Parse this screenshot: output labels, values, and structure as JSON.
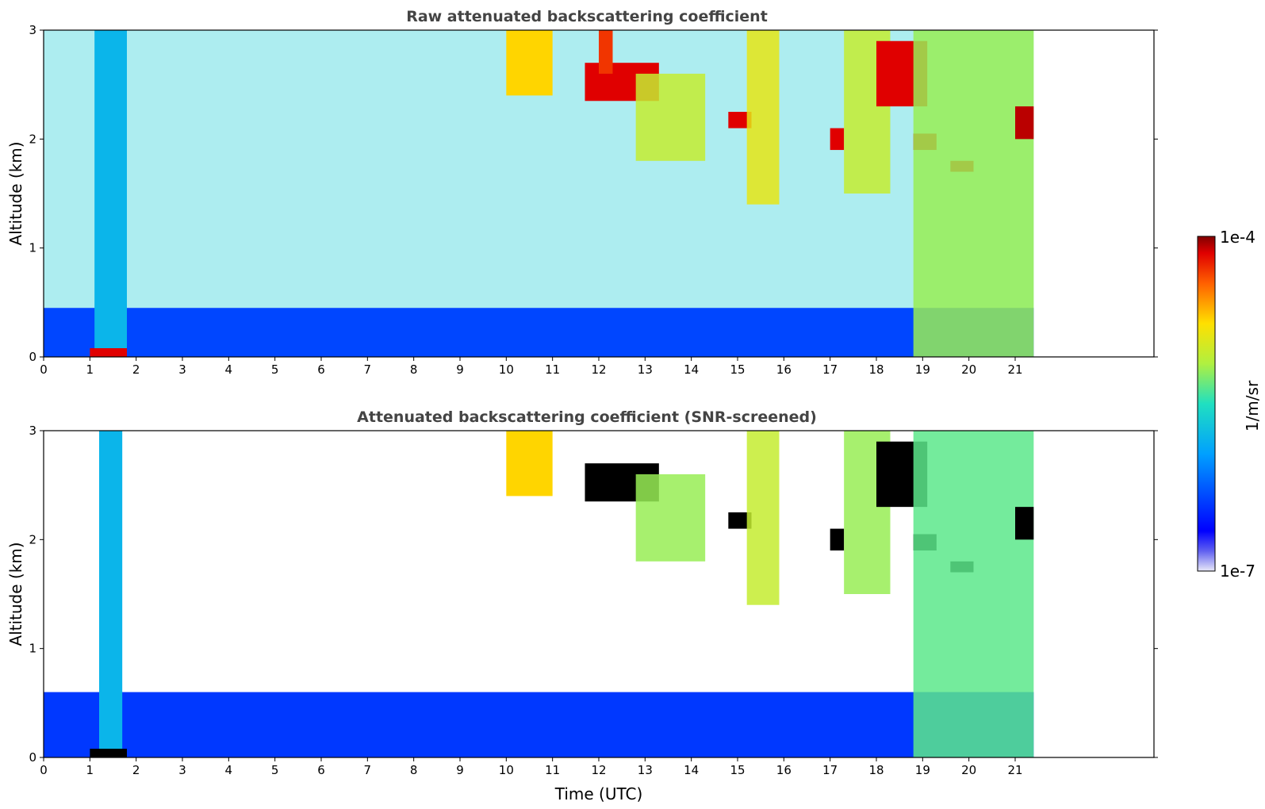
{
  "chart_data": [
    {
      "type": "heatmap",
      "title": "Raw attenuated backscattering coefficient",
      "xlabel": "",
      "ylabel": "Altitude (km)",
      "xlim": [
        0,
        24
      ],
      "ylim": [
        0,
        3
      ],
      "x_ticks": [
        "0",
        "1",
        "2",
        "3",
        "4",
        "5",
        "6",
        "7",
        "8",
        "9",
        "10",
        "11",
        "12",
        "13",
        "14",
        "15",
        "16",
        "17",
        "18",
        "19",
        "20",
        "21"
      ],
      "y_ticks": [
        "0",
        "1",
        "2",
        "3"
      ],
      "data_end_time": 21.4,
      "features": [
        {
          "kind": "boundary_layer",
          "t0": 0,
          "t1": 21.4,
          "top_km": 0.45,
          "level": 0.22
        },
        {
          "kind": "plume",
          "t0": 1.1,
          "t1": 1.8,
          "top_km": 3.0,
          "level": 0.4
        },
        {
          "kind": "surface_return",
          "t0": 1.0,
          "t1": 1.8,
          "top_km": 0.08,
          "level": 0.95
        },
        {
          "kind": "cloud_layer",
          "t0": 10.0,
          "t1": 11.0,
          "bottom_km": 2.4,
          "top_km": 3.0,
          "level": 0.75
        },
        {
          "kind": "cloud_layer",
          "t0": 11.7,
          "t1": 13.3,
          "bottom_km": 2.35,
          "top_km": 2.7,
          "level": 0.95
        },
        {
          "kind": "cloud_layer",
          "t0": 12.0,
          "t1": 12.3,
          "bottom_km": 2.6,
          "top_km": 3.0,
          "level": 0.9
        },
        {
          "kind": "virga",
          "t0": 12.8,
          "t1": 14.3,
          "bottom_km": 1.8,
          "top_km": 2.6,
          "level": 0.65
        },
        {
          "kind": "cloud_layer",
          "t0": 14.8,
          "t1": 15.3,
          "bottom_km": 2.1,
          "top_km": 2.25,
          "level": 0.95
        },
        {
          "kind": "virga",
          "t0": 15.2,
          "t1": 15.9,
          "bottom_km": 1.4,
          "top_km": 3.0,
          "level": 0.7
        },
        {
          "kind": "cloud_layer",
          "t0": 17.0,
          "t1": 17.3,
          "bottom_km": 1.9,
          "top_km": 2.1,
          "level": 0.95
        },
        {
          "kind": "virga",
          "t0": 17.3,
          "t1": 18.3,
          "bottom_km": 1.5,
          "top_km": 3.0,
          "level": 0.65
        },
        {
          "kind": "cloud_layer",
          "t0": 18.0,
          "t1": 19.1,
          "bottom_km": 2.3,
          "top_km": 2.9,
          "level": 0.95
        },
        {
          "kind": "cloud_layer",
          "t0": 18.8,
          "t1": 19.3,
          "bottom_km": 1.9,
          "top_km": 2.05,
          "level": 0.95
        },
        {
          "kind": "cloud_layer",
          "t0": 19.6,
          "t1": 20.1,
          "bottom_km": 1.7,
          "top_km": 1.8,
          "level": 0.95
        },
        {
          "kind": "cloud_system",
          "t0": 18.8,
          "t1": 21.4,
          "bottom_km": 0.0,
          "top_km": 3.0,
          "level": 0.6
        },
        {
          "kind": "cloud_layer",
          "t0": 21.0,
          "t1": 21.4,
          "bottom_km": 2.0,
          "top_km": 2.3,
          "level": 0.97
        }
      ]
    },
    {
      "type": "heatmap",
      "title": "Attenuated backscattering coefficient (SNR-screened)",
      "xlabel": "Time (UTC)",
      "ylabel": "Altitude (km)",
      "xlim": [
        0,
        24
      ],
      "ylim": [
        0,
        3
      ],
      "x_ticks": [
        "0",
        "1",
        "2",
        "3",
        "4",
        "5",
        "6",
        "7",
        "8",
        "9",
        "10",
        "11",
        "12",
        "13",
        "14",
        "15",
        "16",
        "17",
        "18",
        "19",
        "20",
        "21"
      ],
      "y_ticks": [
        "0",
        "1",
        "2",
        "3"
      ],
      "data_end_time": 21.4,
      "screened": true,
      "features": [
        {
          "kind": "boundary_layer",
          "t0": 0,
          "t1": 21.4,
          "top_km": 0.6,
          "level": 0.2
        },
        {
          "kind": "plume",
          "t0": 1.2,
          "t1": 1.7,
          "top_km": 3.0,
          "level": 0.4
        },
        {
          "kind": "surface_return",
          "t0": 1.0,
          "t1": 1.8,
          "top_km": 0.08,
          "level": 1.0
        },
        {
          "kind": "cloud_layer",
          "t0": 10.0,
          "t1": 11.0,
          "bottom_km": 2.4,
          "top_km": 3.0,
          "level": 0.75
        },
        {
          "kind": "cloud_layer",
          "t0": 11.7,
          "t1": 13.3,
          "bottom_km": 2.35,
          "top_km": 2.7,
          "level": 1.0
        },
        {
          "kind": "virga",
          "t0": 12.8,
          "t1": 14.3,
          "bottom_km": 1.8,
          "top_km": 2.6,
          "level": 0.6
        },
        {
          "kind": "cloud_layer",
          "t0": 14.8,
          "t1": 15.3,
          "bottom_km": 2.1,
          "top_km": 2.25,
          "level": 1.0
        },
        {
          "kind": "virga",
          "t0": 15.2,
          "t1": 15.9,
          "bottom_km": 1.4,
          "top_km": 3.0,
          "level": 0.65
        },
        {
          "kind": "cloud_layer",
          "t0": 17.0,
          "t1": 17.3,
          "bottom_km": 1.9,
          "top_km": 2.1,
          "level": 1.0
        },
        {
          "kind": "virga",
          "t0": 17.3,
          "t1": 18.3,
          "bottom_km": 1.5,
          "top_km": 3.0,
          "level": 0.6
        },
        {
          "kind": "cloud_layer",
          "t0": 18.0,
          "t1": 19.1,
          "bottom_km": 2.3,
          "top_km": 2.9,
          "level": 1.0
        },
        {
          "kind": "cloud_layer",
          "t0": 18.8,
          "t1": 19.3,
          "bottom_km": 1.9,
          "top_km": 2.05,
          "level": 1.0
        },
        {
          "kind": "cloud_layer",
          "t0": 19.6,
          "t1": 20.1,
          "bottom_km": 1.7,
          "top_km": 1.8,
          "level": 1.0
        },
        {
          "kind": "cloud_system",
          "t0": 18.8,
          "t1": 21.4,
          "bottom_km": 0.0,
          "top_km": 3.0,
          "level": 0.55
        },
        {
          "kind": "cloud_layer",
          "t0": 21.0,
          "t1": 21.4,
          "bottom_km": 2.0,
          "top_km": 2.3,
          "level": 1.0
        }
      ]
    }
  ],
  "colorbar": {
    "label": "1/m/sr",
    "max_label": "1e-4",
    "min_label": "1e-7",
    "colormap": "jet",
    "scale": "log"
  }
}
